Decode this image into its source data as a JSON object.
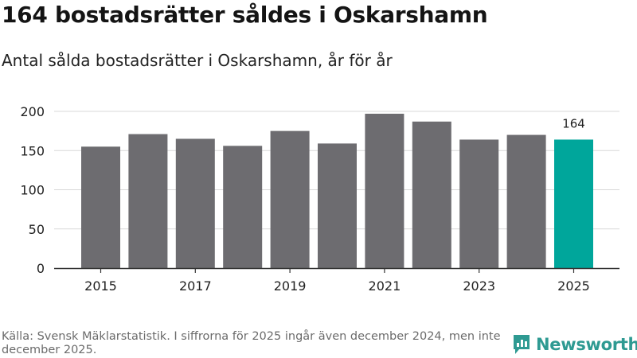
{
  "header": {
    "title": "164 bostadsrätter såldes i Oskarshamn",
    "subtitle": "Antal sålda bostadsrätter i Oskarshamn, år för år"
  },
  "footer": {
    "source": "Källa: Svensk Mäklarstatistik. I siffrorna för 2025 ingår även december 2024, men inte december 2025.",
    "brand": "Newsworthy"
  },
  "colors": {
    "bar": "#6d6c70",
    "highlight": "#00a69b",
    "grid": "#d9d9d9",
    "axis": "#333333",
    "brand": "#2e9a92"
  },
  "chart_data": {
    "type": "bar",
    "title": "Antal sålda bostadsrätter i Oskarshamn, år för år",
    "xlabel": "",
    "ylabel": "",
    "categories": [
      "2015",
      "2016",
      "2017",
      "2018",
      "2019",
      "2020",
      "2021",
      "2022",
      "2023",
      "2024",
      "2025"
    ],
    "values": [
      155,
      171,
      165,
      156,
      175,
      159,
      197,
      187,
      164,
      170,
      164
    ],
    "ylim": [
      0,
      200
    ],
    "yticks": [
      0,
      50,
      100,
      150,
      200
    ],
    "xtick_labels": [
      "2015",
      "2017",
      "2019",
      "2021",
      "2023",
      "2025"
    ],
    "highlight_category": "2025",
    "annotations": [
      {
        "category": "2025",
        "text": "164"
      }
    ],
    "grid": true,
    "legend": "none"
  }
}
